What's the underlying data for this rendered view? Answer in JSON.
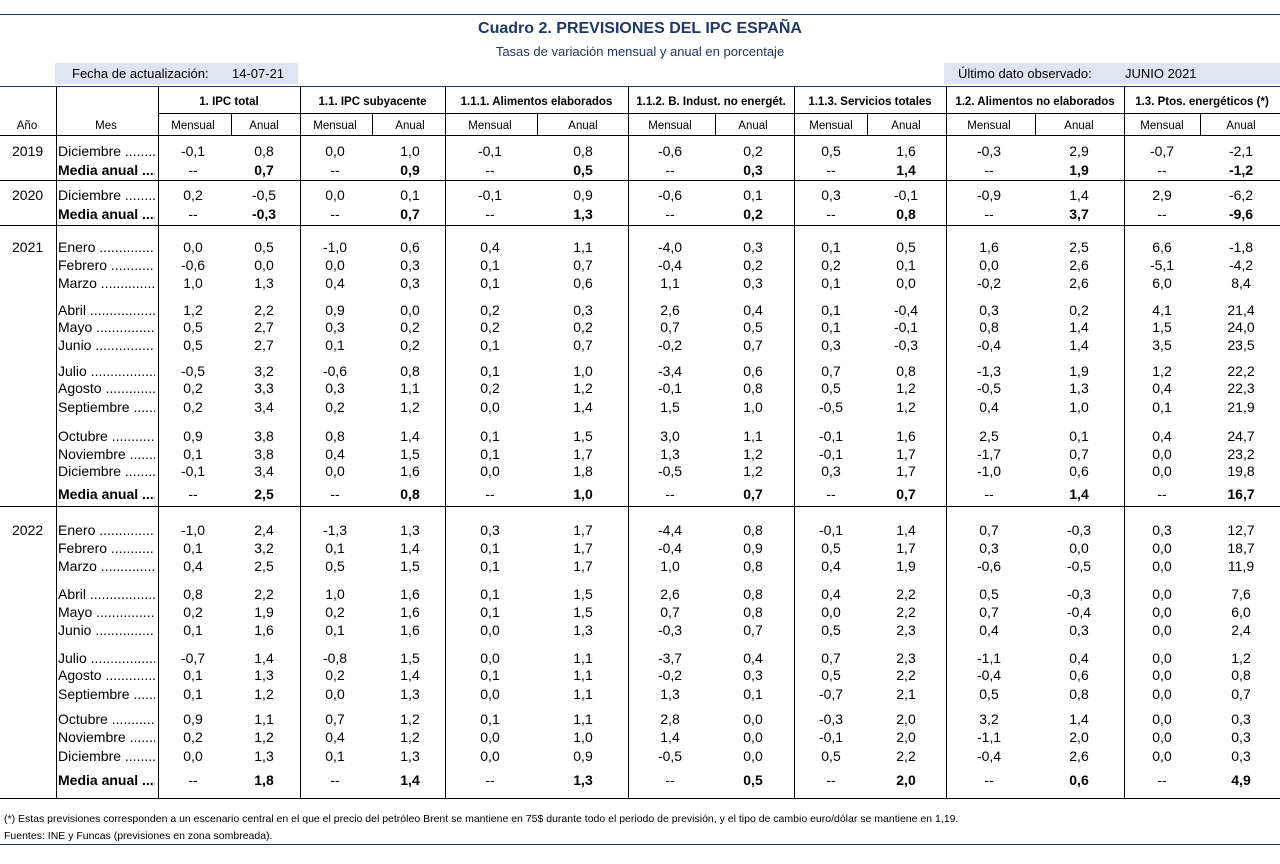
{
  "title": "Cuadro 2. PREVISIONES DEL IPC ESPAÑA",
  "subtitle": "Tasas de variación mensual y anual en porcentaje",
  "info": {
    "update_label": "Fecha de actualización:",
    "update_value": "14-07-21",
    "last_label": "Último dato observado:",
    "last_value": "JUNIO 2021"
  },
  "headers": {
    "year": "Año",
    "month": "Mes",
    "monthly": "Mensual",
    "annual": "Anual",
    "groups": [
      "1. IPC total",
      "1.1. IPC subyacente",
      "1.1.1. Alimentos elaborados",
      "1.1.2. B. Indust. no energét.",
      "1.1.3. Servicios totales",
      "1.2. Alimentos no elaborados",
      "1.3. Ptos. energéticos (*)"
    ]
  },
  "rows": [
    {
      "year": "2019",
      "label": "Diciembre",
      "dots": true,
      "bold": false,
      "vals": [
        "-0,1",
        "0,8",
        "0,0",
        "1,0",
        "-0,1",
        "0,8",
        "-0,6",
        "0,2",
        "0,5",
        "1,6",
        "-0,3",
        "2,9",
        "-0,7",
        "-2,1"
      ]
    },
    {
      "year": "",
      "label": "Media anual",
      "dots": true,
      "bold": true,
      "vals": [
        "--",
        "0,7",
        "--",
        "0,9",
        "--",
        "0,5",
        "--",
        "0,3",
        "--",
        "1,4",
        "--",
        "1,9",
        "--",
        "-1,2"
      ]
    },
    {
      "year": "2020",
      "label": "Diciembre",
      "dots": true,
      "bold": false,
      "vals": [
        "0,2",
        "-0,5",
        "0,0",
        "0,1",
        "-0,1",
        "0,9",
        "-0,6",
        "0,1",
        "0,3",
        "-0,1",
        "-0,9",
        "1,4",
        "2,9",
        "-6,2"
      ]
    },
    {
      "year": "",
      "label": "Media anual",
      "dots": true,
      "bold": true,
      "vals": [
        "--",
        "-0,3",
        "--",
        "0,7",
        "--",
        "1,3",
        "--",
        "0,2",
        "--",
        "0,8",
        "--",
        "3,7",
        "--",
        "-9,6"
      ]
    },
    {
      "year": "2021",
      "label": "Enero",
      "dots": true,
      "bold": false,
      "vals": [
        "0,0",
        "0,5",
        "-1,0",
        "0,6",
        "0,4",
        "1,1",
        "-4,0",
        "0,3",
        "0,1",
        "0,5",
        "1,6",
        "2,5",
        "6,6",
        "-1,8"
      ]
    },
    {
      "year": "",
      "label": "Febrero",
      "dots": true,
      "bold": false,
      "vals": [
        "-0,6",
        "0,0",
        "0,0",
        "0,3",
        "0,1",
        "0,7",
        "-0,4",
        "0,2",
        "0,2",
        "0,1",
        "0,0",
        "2,6",
        "-5,1",
        "-4,2"
      ]
    },
    {
      "year": "",
      "label": "Marzo",
      "dots": true,
      "bold": false,
      "vals": [
        "1,0",
        "1,3",
        "0,4",
        "0,3",
        "0,1",
        "0,6",
        "1,1",
        "0,3",
        "0,1",
        "0,0",
        "-0,2",
        "2,6",
        "6,0",
        "8,4"
      ]
    },
    {
      "year": "",
      "label": "Abril",
      "dots": true,
      "bold": false,
      "vals": [
        "1,2",
        "2,2",
        "0,9",
        "0,0",
        "0,2",
        "0,3",
        "2,6",
        "0,4",
        "0,1",
        "-0,4",
        "0,3",
        "0,2",
        "4,1",
        "21,4"
      ]
    },
    {
      "year": "",
      "label": "Mayo",
      "dots": true,
      "bold": false,
      "vals": [
        "0,5",
        "2,7",
        "0,3",
        "0,2",
        "0,2",
        "0,2",
        "0,7",
        "0,5",
        "0,1",
        "-0,1",
        "0,8",
        "1,4",
        "1,5",
        "24,0"
      ]
    },
    {
      "year": "",
      "label": "Junio",
      "dots": true,
      "bold": false,
      "vals": [
        "0,5",
        "2,7",
        "0,1",
        "0,2",
        "0,1",
        "0,7",
        "-0,2",
        "0,7",
        "0,3",
        "-0,3",
        "-0,4",
        "1,4",
        "3,5",
        "23,5"
      ]
    },
    {
      "year": "",
      "label": "Julio",
      "dots": true,
      "bold": false,
      "vals": [
        "-0,5",
        "3,2",
        "-0,6",
        "0,8",
        "0,1",
        "1,0",
        "-3,4",
        "0,6",
        "0,7",
        "0,8",
        "-1,3",
        "1,9",
        "1,2",
        "22,2"
      ]
    },
    {
      "year": "",
      "label": "Agosto",
      "dots": true,
      "bold": false,
      "vals": [
        "0,2",
        "3,3",
        "0,3",
        "1,1",
        "0,2",
        "1,2",
        "-0,1",
        "0,8",
        "0,5",
        "1,2",
        "-0,5",
        "1,3",
        "0,4",
        "22,3"
      ]
    },
    {
      "year": "",
      "label": "Septiembre",
      "dots": true,
      "bold": false,
      "vals": [
        "0,2",
        "3,4",
        "0,2",
        "1,2",
        "0,0",
        "1,4",
        "1,5",
        "1,0",
        "-0,5",
        "1,2",
        "0,4",
        "1,0",
        "0,1",
        "21,9"
      ]
    },
    {
      "year": "",
      "label": "Octubre",
      "dots": true,
      "bold": false,
      "vals": [
        "0,9",
        "3,8",
        "0,8",
        "1,4",
        "0,1",
        "1,5",
        "3,0",
        "1,1",
        "-0,1",
        "1,6",
        "2,5",
        "0,1",
        "0,4",
        "24,7"
      ]
    },
    {
      "year": "",
      "label": "Noviembre",
      "dots": true,
      "bold": false,
      "vals": [
        "0,1",
        "3,8",
        "0,4",
        "1,5",
        "0,1",
        "1,7",
        "1,3",
        "1,2",
        "-0,1",
        "1,7",
        "-1,7",
        "0,7",
        "0,0",
        "23,2"
      ]
    },
    {
      "year": "",
      "label": "Diciembre",
      "dots": true,
      "bold": false,
      "vals": [
        "-0,1",
        "3,4",
        "0,0",
        "1,6",
        "0,0",
        "1,8",
        "-0,5",
        "1,2",
        "0,3",
        "1,7",
        "-1,0",
        "0,6",
        "0,0",
        "19,8"
      ]
    },
    {
      "year": "",
      "label": "Media anual",
      "dots": true,
      "bold": true,
      "vals": [
        "--",
        "2,5",
        "--",
        "0,8",
        "--",
        "1,0",
        "--",
        "0,7",
        "--",
        "0,7",
        "--",
        "1,4",
        "--",
        "16,7"
      ]
    },
    {
      "year": "2022",
      "label": "Enero",
      "dots": true,
      "bold": false,
      "vals": [
        "-1,0",
        "2,4",
        "-1,3",
        "1,3",
        "0,3",
        "1,7",
        "-4,4",
        "0,8",
        "-0,1",
        "1,4",
        "0,7",
        "-0,3",
        "0,3",
        "12,7"
      ]
    },
    {
      "year": "",
      "label": "Febrero",
      "dots": true,
      "bold": false,
      "vals": [
        "0,1",
        "3,2",
        "0,1",
        "1,4",
        "0,1",
        "1,7",
        "-0,4",
        "0,9",
        "0,5",
        "1,7",
        "0,3",
        "0,0",
        "0,0",
        "18,7"
      ]
    },
    {
      "year": "",
      "label": "Marzo",
      "dots": true,
      "bold": false,
      "vals": [
        "0,4",
        "2,5",
        "0,5",
        "1,5",
        "0,1",
        "1,7",
        "1,0",
        "0,8",
        "0,4",
        "1,9",
        "-0,6",
        "-0,5",
        "0,0",
        "11,9"
      ]
    },
    {
      "year": "",
      "label": "Abril",
      "dots": true,
      "bold": false,
      "vals": [
        "0,8",
        "2,2",
        "1,0",
        "1,6",
        "0,1",
        "1,5",
        "2,6",
        "0,8",
        "0,4",
        "2,2",
        "0,5",
        "-0,3",
        "0,0",
        "7,6"
      ]
    },
    {
      "year": "",
      "label": "Mayo",
      "dots": true,
      "bold": false,
      "vals": [
        "0,2",
        "1,9",
        "0,2",
        "1,6",
        "0,1",
        "1,5",
        "0,7",
        "0,8",
        "0,0",
        "2,2",
        "0,7",
        "-0,4",
        "0,0",
        "6,0"
      ]
    },
    {
      "year": "",
      "label": "Junio",
      "dots": true,
      "bold": false,
      "vals": [
        "0,1",
        "1,6",
        "0,1",
        "1,6",
        "0,0",
        "1,3",
        "-0,3",
        "0,7",
        "0,5",
        "2,3",
        "0,4",
        "0,3",
        "0,0",
        "2,4"
      ]
    },
    {
      "year": "",
      "label": "Julio",
      "dots": true,
      "bold": false,
      "vals": [
        "-0,7",
        "1,4",
        "-0,8",
        "1,5",
        "0,0",
        "1,1",
        "-3,7",
        "0,4",
        "0,7",
        "2,3",
        "-1,1",
        "0,4",
        "0,0",
        "1,2"
      ]
    },
    {
      "year": "",
      "label": "Agosto",
      "dots": true,
      "bold": false,
      "vals": [
        "0,1",
        "1,3",
        "0,2",
        "1,4",
        "0,1",
        "1,1",
        "-0,2",
        "0,3",
        "0,5",
        "2,2",
        "-0,4",
        "0,6",
        "0,0",
        "0,8"
      ]
    },
    {
      "year": "",
      "label": "Septiembre",
      "dots": true,
      "bold": false,
      "vals": [
        "0,1",
        "1,2",
        "0,0",
        "1,3",
        "0,0",
        "1,1",
        "1,3",
        "0,1",
        "-0,7",
        "2,1",
        "0,5",
        "0,8",
        "0,0",
        "0,7"
      ]
    },
    {
      "year": "",
      "label": "Octubre",
      "dots": true,
      "bold": false,
      "vals": [
        "0,9",
        "1,1",
        "0,7",
        "1,2",
        "0,1",
        "1,1",
        "2,8",
        "0,0",
        "-0,3",
        "2,0",
        "3,2",
        "1,4",
        "0,0",
        "0,3"
      ]
    },
    {
      "year": "",
      "label": "Noviembre",
      "dots": true,
      "bold": false,
      "vals": [
        "0,2",
        "1,2",
        "0,4",
        "1,2",
        "0,0",
        "1,0",
        "1,4",
        "0,0",
        "-0,1",
        "2,0",
        "-1,1",
        "2,0",
        "0,0",
        "0,3"
      ]
    },
    {
      "year": "",
      "label": "Diciembre",
      "dots": true,
      "bold": false,
      "vals": [
        "0,0",
        "1,3",
        "0,1",
        "1,3",
        "0,0",
        "0,9",
        "-0,5",
        "0,0",
        "0,5",
        "2,2",
        "-0,4",
        "2,6",
        "0,0",
        "0,3"
      ]
    },
    {
      "year": "",
      "label": "Media anual",
      "dots": true,
      "bold": true,
      "vals": [
        "--",
        "1,8",
        "--",
        "1,4",
        "--",
        "1,3",
        "--",
        "0,5",
        "--",
        "2,0",
        "--",
        "0,6",
        "--",
        "4,9"
      ]
    }
  ],
  "notes": {
    "note1": "(*) Estas previsiones corresponden a un escenario central en el que el precio del petróleo Brent se mantiene en 75$ durante todo el periodo de previsión, y el tipo de cambio euro/dólar se mantiene en 1,19.",
    "note2": "Fuentes: INE y Funcas (previsiones en zona sombreada)."
  },
  "colors": {
    "title": "#1f3864",
    "shade": "#dce6f1"
  }
}
